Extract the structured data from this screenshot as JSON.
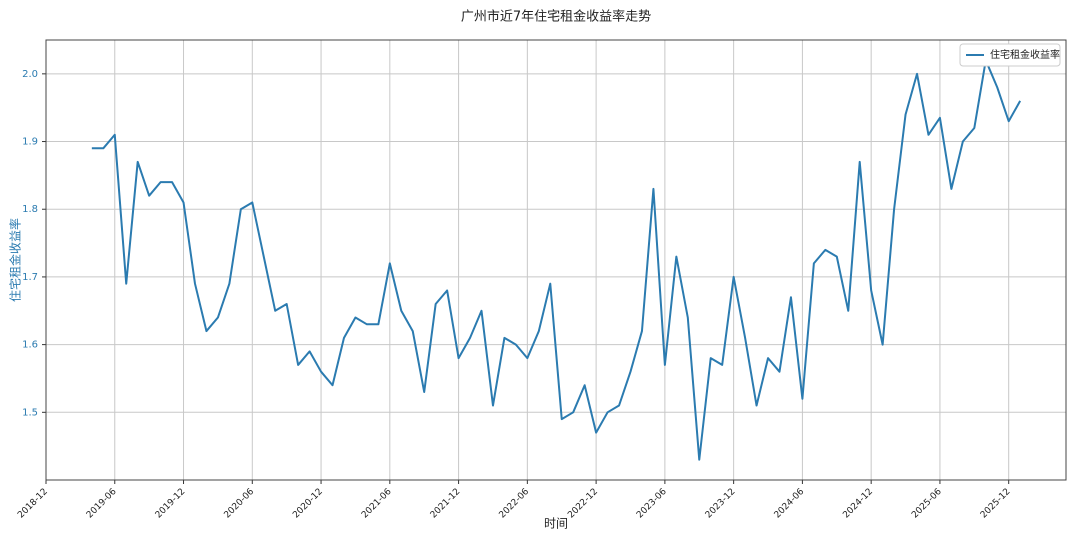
{
  "chart_data": {
    "type": "line",
    "title": "广州市近7年住宅租金收益率走势",
    "x_label": "时间",
    "y_label": "住宅租金收益率",
    "x": [
      "2019-04",
      "2019-05",
      "2019-06",
      "2019-07",
      "2019-08",
      "2019-09",
      "2019-10",
      "2019-11",
      "2019-12",
      "2020-01",
      "2020-02",
      "2020-03",
      "2020-04",
      "2020-05",
      "2020-06",
      "2020-07",
      "2020-08",
      "2020-09",
      "2020-10",
      "2020-11",
      "2020-12",
      "2021-01",
      "2021-02",
      "2021-03",
      "2021-04",
      "2021-05",
      "2021-06",
      "2021-07",
      "2021-08",
      "2021-09",
      "2021-10",
      "2021-11",
      "2021-12",
      "2022-01",
      "2022-02",
      "2022-03",
      "2022-04",
      "2022-05",
      "2022-06",
      "2022-07",
      "2022-08",
      "2022-09",
      "2022-10",
      "2022-11",
      "2022-12",
      "2023-01",
      "2023-02",
      "2023-03",
      "2023-04",
      "2023-05",
      "2023-06",
      "2023-07",
      "2023-08",
      "2023-09",
      "2023-10",
      "2023-11",
      "2023-12",
      "2024-01",
      "2024-02",
      "2024-03",
      "2024-04",
      "2024-05",
      "2024-06",
      "2024-07",
      "2024-08",
      "2024-09",
      "2024-10",
      "2024-11",
      "2024-12",
      "2025-01",
      "2025-02",
      "2025-03",
      "2025-04",
      "2025-05",
      "2025-06",
      "2025-07",
      "2025-08",
      "2025-09",
      "2025-10",
      "2025-11",
      "2025-12",
      "2026-01"
    ],
    "series": [
      {
        "name": "住宅租金收益率",
        "color": "#2b7bb0",
        "values": [
          1.89,
          1.89,
          1.91,
          1.69,
          1.87,
          1.82,
          1.84,
          1.84,
          1.81,
          1.69,
          1.62,
          1.64,
          1.69,
          1.8,
          1.81,
          1.73,
          1.65,
          1.66,
          1.57,
          1.59,
          1.56,
          1.54,
          1.61,
          1.64,
          1.63,
          1.63,
          1.72,
          1.65,
          1.62,
          1.53,
          1.66,
          1.68,
          1.58,
          1.61,
          1.65,
          1.51,
          1.61,
          1.6,
          1.58,
          1.62,
          1.69,
          1.49,
          1.5,
          1.54,
          1.47,
          1.5,
          1.51,
          1.56,
          1.62,
          1.83,
          1.57,
          1.73,
          1.64,
          1.43,
          1.58,
          1.57,
          1.7,
          1.61,
          1.51,
          1.58,
          1.56,
          1.67,
          1.52,
          1.72,
          1.74,
          1.73,
          1.65,
          1.87,
          1.68,
          1.6,
          1.8,
          1.94,
          2.0,
          1.91,
          1.935,
          1.83,
          1.9,
          1.92,
          2.02,
          1.98,
          1.93,
          1.96
        ]
      }
    ],
    "xlim": [
      "2018-12",
      "2026-05"
    ],
    "xticks": [
      "2018-12",
      "2019-06",
      "2019-12",
      "2020-06",
      "2020-12",
      "2021-06",
      "2021-12",
      "2022-06",
      "2022-12",
      "2023-06",
      "2023-12",
      "2024-06",
      "2024-12",
      "2025-06",
      "2025-12"
    ],
    "ylim": [
      1.4,
      2.05
    ],
    "yticks": [
      1.5,
      1.6,
      1.7,
      1.8,
      1.9,
      {
        "value": 2,
        "label": "2.0"
      }
    ],
    "grid": true,
    "legend": "upper right",
    "y_label_color": "#2b7bb0",
    "tick_label_color": "#2b7bb0"
  }
}
